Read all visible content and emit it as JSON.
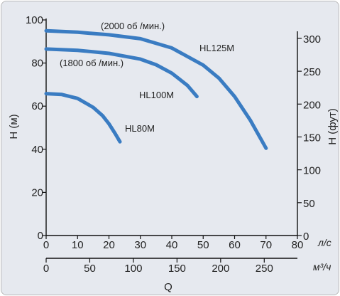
{
  "chart_data": {
    "type": "line",
    "title": "",
    "ylabel": "H (м)",
    "ylabel_right": "H (фут)",
    "xlabel": "Q",
    "x_unit_top": "л/с",
    "x_unit_bottom": "м³/ч",
    "xlim": [
      0,
      80
    ],
    "ylim": [
      0,
      100
    ],
    "x_ticks_top": [
      "0",
      "10",
      "20",
      "30",
      "40",
      "50",
      "60",
      "70",
      "80"
    ],
    "x_ticks_bottom": [
      "0",
      "50",
      "100",
      "150",
      "200",
      "250"
    ],
    "y_ticks_left": [
      "0",
      "20",
      "40",
      "60",
      "80",
      "100"
    ],
    "y_ticks_right": [
      "0",
      "50",
      "100",
      "150",
      "200",
      "250",
      "300"
    ],
    "grid": false,
    "series": [
      {
        "name": "HL125M",
        "color": "#3a7cc2",
        "x": [
          0,
          10,
          20,
          30,
          40,
          50,
          55,
          60,
          65,
          70
        ],
        "y": [
          95,
          94.3,
          93.1,
          91.3,
          87,
          79,
          73,
          64.5,
          53.5,
          40.5
        ]
      },
      {
        "name": "HL100M",
        "color": "#3a7cc2",
        "x": [
          0,
          10,
          20,
          30,
          35,
          40,
          45,
          48
        ],
        "y": [
          86.5,
          85.9,
          84.5,
          81.8,
          79.2,
          75.3,
          69.6,
          64.5
        ]
      },
      {
        "name": "HL80M",
        "color": "#3a7cc2",
        "x": [
          0,
          5,
          10,
          15,
          18,
          20,
          22,
          23.5
        ],
        "y": [
          65.8,
          65.4,
          63.6,
          59.4,
          55.5,
          51.8,
          47.2,
          43.5
        ]
      }
    ],
    "annotations": [
      {
        "text": "(2000 об /мин.)"
      },
      {
        "text": "(1800 об /мин.)"
      }
    ]
  }
}
